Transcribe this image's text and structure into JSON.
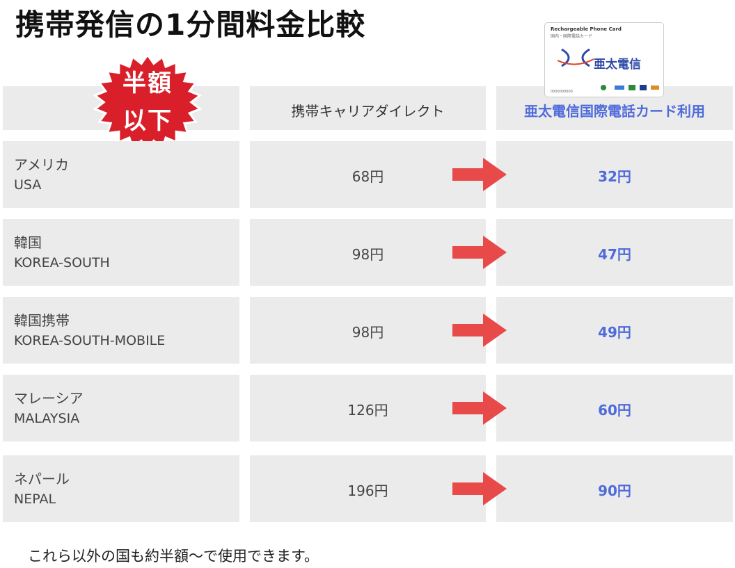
{
  "title": "携帯発信の1分間料金比較",
  "badge": {
    "line1": "半額",
    "line2": "以下"
  },
  "card": {
    "title": "Rechargeable Phone Card",
    "subtitle": "国内・国際電話カード",
    "brand": "亜太電信",
    "number": "0000000000"
  },
  "headers": {
    "carrier": "携帯キャリアダイレクト",
    "card": "亜太電信国際電話カード利用"
  },
  "rows": [
    {
      "jp": "アメリカ",
      "en": "USA",
      "carrier": "68円",
      "card": "32円"
    },
    {
      "jp": "韓国",
      "en": "KOREA-SOUTH",
      "carrier": "98円",
      "card": "47円"
    },
    {
      "jp": "韓国携帯",
      "en": "KOREA-SOUTH-MOBILE",
      "carrier": "98円",
      "card": "49円"
    },
    {
      "jp": "マレーシア",
      "en": "MALAYSIA",
      "carrier": "126円",
      "card": "60円"
    },
    {
      "jp": "ネパール",
      "en": "NEPAL",
      "carrier": "196円",
      "card": "90円"
    }
  ],
  "footer": "これら以外の国も約半額～で使用できます。",
  "colors": {
    "accent_blue": "#4f6bdb",
    "arrow_red": "#e84a4a",
    "badge_red": "#d9202a",
    "cell_gray": "#ebebeb"
  }
}
